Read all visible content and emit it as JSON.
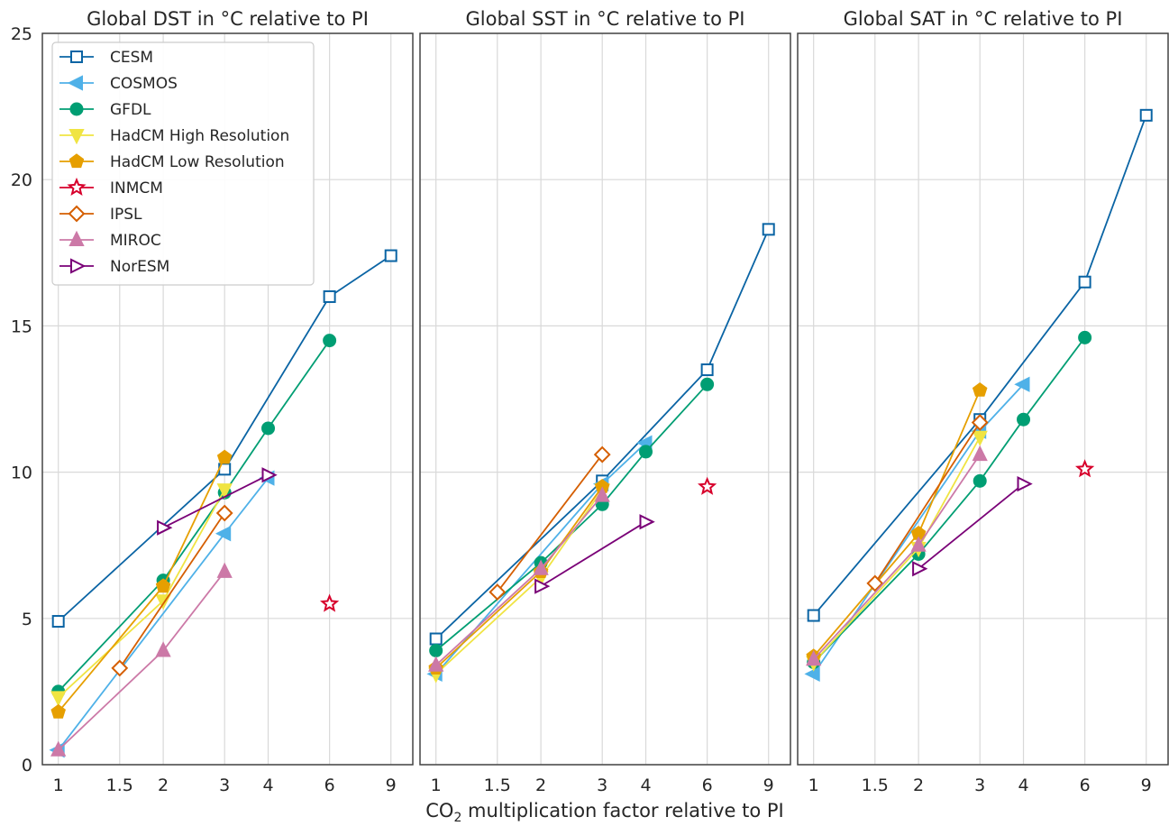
{
  "chart_data": {
    "type": "line",
    "xlabel": {
      "prefix": "CO",
      "subscript": "2",
      "suffix": " multiplication factor relative to PI"
    },
    "x_ticks": [
      1,
      1.5,
      2,
      3,
      4,
      6,
      9
    ],
    "x_tick_labels": [
      "1",
      "1.5",
      "2",
      "3",
      "4",
      "6",
      "9"
    ],
    "x_scale": "log",
    "xlim": [
      0.9,
      10.4
    ],
    "ylim": [
      0,
      25
    ],
    "y_ticks": [
      0,
      5,
      10,
      15,
      20,
      25
    ],
    "y_tick_labels": [
      "0",
      "5",
      "10",
      "15",
      "20",
      "25"
    ],
    "grid": true,
    "legend": {
      "placement": "top-left",
      "panel": 0
    },
    "series_styles": [
      {
        "name": "CESM",
        "color": "#0a64a4",
        "marker": "square-open"
      },
      {
        "name": "COSMOS",
        "color": "#4fb1e8",
        "marker": "triangle-left"
      },
      {
        "name": "GFDL",
        "color": "#009e73",
        "marker": "circle"
      },
      {
        "name": "HadCM High Resolution",
        "color": "#f0e442",
        "marker": "triangle-down"
      },
      {
        "name": "HadCM Low Resolution",
        "color": "#e69f00",
        "marker": "pentagon"
      },
      {
        "name": "INMCM",
        "color": "#d7002b",
        "marker": "star-open"
      },
      {
        "name": "IPSL",
        "color": "#d55e00",
        "marker": "diamond-open"
      },
      {
        "name": "MIROC",
        "color": "#cc79a7",
        "marker": "triangle-up"
      },
      {
        "name": "NorESM",
        "color": "#7a0177",
        "marker": "triangle-right-open"
      }
    ],
    "panels": [
      {
        "title": "Global DST in °C relative to PI",
        "series": [
          {
            "name": "CESM",
            "x": [
              1,
              2,
              3,
              6,
              9
            ],
            "y": [
              4.9,
              null,
              10.1,
              16.0,
              17.4
            ]
          },
          {
            "name": "COSMOS",
            "x": [
              1,
              3,
              4
            ],
            "y": [
              0.5,
              7.9,
              9.8
            ]
          },
          {
            "name": "GFDL",
            "x": [
              1,
              2,
              3,
              4,
              6
            ],
            "y": [
              2.5,
              6.3,
              9.3,
              11.5,
              14.5
            ]
          },
          {
            "name": "HadCM High Resolution",
            "x": [
              1,
              2,
              3
            ],
            "y": [
              2.3,
              5.6,
              9.4
            ]
          },
          {
            "name": "HadCM Low Resolution",
            "x": [
              1,
              2,
              3
            ],
            "y": [
              1.8,
              6.1,
              10.5
            ]
          },
          {
            "name": "INMCM",
            "x": [
              6
            ],
            "y": [
              5.5
            ]
          },
          {
            "name": "IPSL",
            "x": [
              1.5,
              3
            ],
            "y": [
              3.3,
              8.6
            ]
          },
          {
            "name": "MIROC",
            "x": [
              1,
              2,
              3
            ],
            "y": [
              0.5,
              3.9,
              6.6
            ]
          },
          {
            "name": "NorESM",
            "x": [
              2,
              4
            ],
            "y": [
              8.1,
              9.9
            ]
          }
        ]
      },
      {
        "title": "Global SST in °C relative to PI",
        "series": [
          {
            "name": "CESM",
            "x": [
              1,
              3,
              6,
              9
            ],
            "y": [
              4.3,
              9.7,
              13.5,
              18.3
            ]
          },
          {
            "name": "COSMOS",
            "x": [
              1,
              3,
              4
            ],
            "y": [
              3.1,
              9.6,
              11.0
            ]
          },
          {
            "name": "GFDL",
            "x": [
              1,
              2,
              3,
              4,
              6
            ],
            "y": [
              3.9,
              6.9,
              8.9,
              10.7,
              13.0
            ]
          },
          {
            "name": "HadCM High Resolution",
            "x": [
              1,
              2,
              3
            ],
            "y": [
              3.1,
              6.4,
              9.4
            ]
          },
          {
            "name": "HadCM Low Resolution",
            "x": [
              1,
              2,
              3
            ],
            "y": [
              3.3,
              6.6,
              9.5
            ]
          },
          {
            "name": "INMCM",
            "x": [
              6
            ],
            "y": [
              9.5
            ]
          },
          {
            "name": "IPSL",
            "x": [
              1.5,
              3
            ],
            "y": [
              5.9,
              10.6
            ]
          },
          {
            "name": "MIROC",
            "x": [
              1,
              2,
              3
            ],
            "y": [
              3.4,
              6.7,
              9.2
            ]
          },
          {
            "name": "NorESM",
            "x": [
              2,
              4
            ],
            "y": [
              6.1,
              8.3
            ]
          }
        ]
      },
      {
        "title": "Global SAT in °C relative to PI",
        "series": [
          {
            "name": "CESM",
            "x": [
              1,
              3,
              6,
              9
            ],
            "y": [
              5.1,
              11.8,
              16.5,
              22.2
            ]
          },
          {
            "name": "COSMOS",
            "x": [
              1,
              3,
              4
            ],
            "y": [
              3.1,
              11.4,
              13.0
            ]
          },
          {
            "name": "GFDL",
            "x": [
              1,
              2,
              3,
              4,
              6
            ],
            "y": [
              3.5,
              7.2,
              9.7,
              11.8,
              14.6
            ]
          },
          {
            "name": "HadCM High Resolution",
            "x": [
              1,
              2,
              3
            ],
            "y": [
              3.5,
              7.4,
              11.2
            ]
          },
          {
            "name": "HadCM Low Resolution",
            "x": [
              1,
              2,
              3
            ],
            "y": [
              3.7,
              7.9,
              12.8
            ]
          },
          {
            "name": "INMCM",
            "x": [
              6
            ],
            "y": [
              10.1
            ]
          },
          {
            "name": "IPSL",
            "x": [
              1.5,
              3
            ],
            "y": [
              6.2,
              11.7
            ]
          },
          {
            "name": "MIROC",
            "x": [
              1,
              2,
              3
            ],
            "y": [
              3.6,
              7.5,
              10.6
            ]
          },
          {
            "name": "NorESM",
            "x": [
              2,
              4
            ],
            "y": [
              6.7,
              9.6
            ]
          }
        ]
      }
    ]
  }
}
